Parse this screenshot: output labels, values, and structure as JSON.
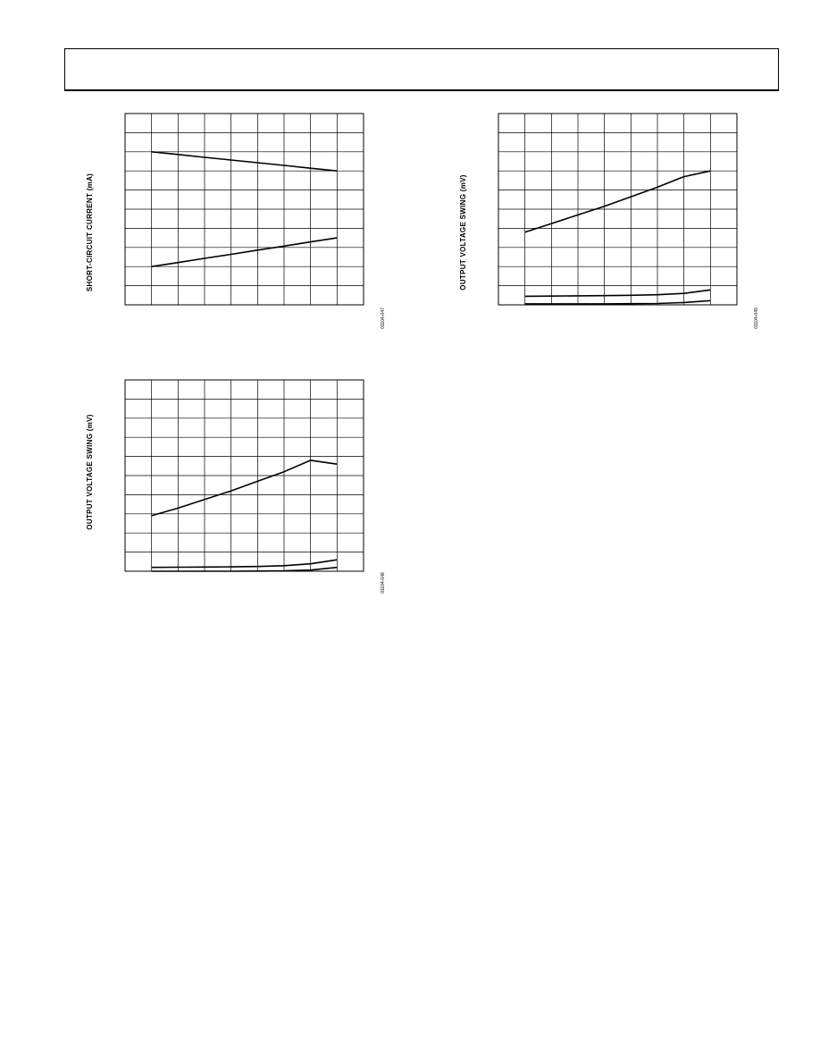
{
  "page": {
    "header": ""
  },
  "figures": [
    {
      "id": "fig-short-circuit",
      "ylabel": "SHORT-CIRCUIT CURRENT (mA)",
      "figure_number": "01104-047",
      "chart_data": {
        "type": "line",
        "title": "",
        "xlabel": "",
        "ylabel": "SHORT-CIRCUIT CURRENT (mA)",
        "x": [
          1,
          2,
          3,
          4,
          5,
          6,
          7,
          8
        ],
        "xlim": [
          0,
          9
        ],
        "ylim": [
          0,
          10
        ],
        "grid": true,
        "series": [
          {
            "name": "",
            "values": [
              8.0,
              7.86,
              7.71,
              7.57,
              7.43,
              7.29,
              7.14,
              7.0
            ]
          },
          {
            "name": "",
            "values": [
              2.0,
              2.21,
              2.43,
              2.64,
              2.86,
              3.07,
              3.29,
              3.5
            ]
          }
        ]
      }
    },
    {
      "id": "fig-output-swing-right",
      "ylabel": "OUTPUT VOLTAGE SWING (mV)",
      "figure_number": "01104-049",
      "chart_data": {
        "type": "line",
        "title": "",
        "xlabel": "",
        "ylabel": "OUTPUT VOLTAGE SWING (mV)",
        "x": [
          1,
          2,
          3,
          4,
          5,
          6,
          7,
          8
        ],
        "xlim": [
          0,
          9
        ],
        "ylim": [
          0,
          10
        ],
        "grid": true,
        "series": [
          {
            "name": "",
            "values": [
              3.8,
              4.25,
              4.7,
              5.15,
              5.65,
              6.15,
              6.7,
              7.0
            ]
          },
          {
            "name": "",
            "values": [
              0.45,
              0.46,
              0.47,
              0.48,
              0.5,
              0.53,
              0.6,
              0.78
            ]
          },
          {
            "name": "",
            "values": [
              0.05,
              0.05,
              0.05,
              0.05,
              0.06,
              0.07,
              0.12,
              0.22
            ]
          }
        ]
      }
    },
    {
      "id": "fig-output-swing-left",
      "ylabel": "OUTPUT VOLTAGE SWING (mV)",
      "figure_number": "01104-048",
      "chart_data": {
        "type": "line",
        "title": "",
        "xlabel": "",
        "ylabel": "OUTPUT VOLTAGE SWING (mV)",
        "x": [
          1,
          2,
          3,
          4,
          5,
          6,
          7,
          8
        ],
        "xlim": [
          0,
          9
        ],
        "ylim": [
          0,
          10
        ],
        "grid": true,
        "series": [
          {
            "name": "",
            "values": [
              2.9,
              3.3,
              3.75,
              4.2,
              4.7,
              5.2,
              5.8,
              5.6
            ]
          },
          {
            "name": "",
            "values": [
              0.2,
              0.21,
              0.22,
              0.23,
              0.25,
              0.29,
              0.39,
              0.6
            ]
          },
          {
            "name": "",
            "values": [
              0.0,
              0.0,
              0.0,
              0.0,
              0.01,
              0.02,
              0.06,
              0.2
            ]
          }
        ]
      }
    }
  ]
}
